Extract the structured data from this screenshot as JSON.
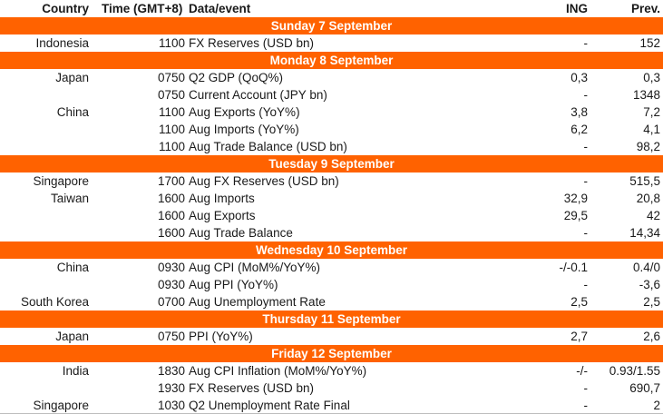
{
  "header": {
    "country": "Country",
    "time": "Time (GMT+8)",
    "event": "Data/event",
    "ing": "ING",
    "prev": "Prev."
  },
  "days": [
    {
      "label": "Sunday 7 September",
      "rows": [
        {
          "country": "Indonesia",
          "time": "1100",
          "event": "FX Reserves (USD bn)",
          "ing": "-",
          "prev": "152"
        }
      ]
    },
    {
      "label": "Monday 8 September",
      "rows": [
        {
          "country": "Japan",
          "time": "0750",
          "event": "Q2 GDP (QoQ%)",
          "ing": "0,3",
          "prev": "0,3"
        },
        {
          "country": "",
          "time": "0750",
          "event": "Current Account (JPY bn)",
          "ing": "-",
          "prev": "1348"
        },
        {
          "country": "China",
          "time": "1100",
          "event": "Aug Exports (YoY%)",
          "ing": "3,8",
          "prev": "7,2"
        },
        {
          "country": "",
          "time": "1100",
          "event": "Aug Imports (YoY%)",
          "ing": "6,2",
          "prev": "4,1"
        },
        {
          "country": "",
          "time": "1100",
          "event": "Aug Trade Balance (USD bn)",
          "ing": "-",
          "prev": "98,2"
        }
      ]
    },
    {
      "label": "Tuesday 9 September",
      "rows": [
        {
          "country": "Singapore",
          "time": "1700",
          "event": "Aug FX Reserves (USD bn)",
          "ing": "-",
          "prev": "515,5"
        },
        {
          "country": "Taiwan",
          "time": "1600",
          "event": "Aug Imports",
          "ing": "32,9",
          "prev": "20,8"
        },
        {
          "country": "",
          "time": "1600",
          "event": "Aug Exports",
          "ing": "29,5",
          "prev": "42"
        },
        {
          "country": "",
          "time": "1600",
          "event": "Aug Trade Balance",
          "ing": "-",
          "prev": "14,34"
        }
      ]
    },
    {
      "label": "Wednesday 10 September",
      "rows": [
        {
          "country": "China",
          "time": "0930",
          "event": "Aug CPI (MoM%/YoY%)",
          "ing": "-/-0.1",
          "prev": "0.4/0"
        },
        {
          "country": "",
          "time": "0930",
          "event": "Aug PPI (YoY%)",
          "ing": "-",
          "prev": "-3,6"
        },
        {
          "country": "South Korea",
          "time": "0700",
          "event": "Aug Unemployment Rate",
          "ing": "2,5",
          "prev": "2,5"
        }
      ]
    },
    {
      "label": "Thursday 11 September",
      "rows": [
        {
          "country": "Japan",
          "time": "0750",
          "event": "PPI (YoY%)",
          "ing": "2,7",
          "prev": "2,6"
        }
      ]
    },
    {
      "label": "Friday 12 September",
      "rows": [
        {
          "country": "India",
          "time": "1830",
          "event": "Aug CPI Inflation (MoM%/YoY%)",
          "ing": "-/-",
          "prev": "0.93/1.55"
        },
        {
          "country": "",
          "time": "1930",
          "event": "FX Reserves (USD bn)",
          "ing": "-",
          "prev": "690,7"
        },
        {
          "country": "Singapore",
          "time": "1030",
          "event": "Q2 Unemployment Rate Final",
          "ing": "-",
          "prev": "2"
        }
      ]
    }
  ],
  "colors": {
    "band": "#ff6200",
    "band_text": "#ffffff",
    "text": "#1a1a1a",
    "rule": "#bdbdbd"
  }
}
